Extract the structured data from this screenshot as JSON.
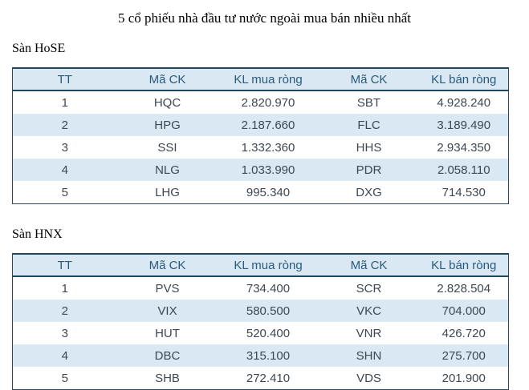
{
  "title": "5 cổ phiếu nhà đầu tư nước ngoài mua bán nhiều nhất",
  "colors": {
    "table_border": "#2b4a5c",
    "header_background": "#d9e8f2",
    "header_text": "#2a5a7c",
    "zebra_row_background": "#d9e8f2",
    "cell_text": "#3d4852",
    "page_background": "#ffffff"
  },
  "sections": [
    {
      "label": "Sàn HoSE",
      "table": {
        "headers": [
          "TT",
          "Mã CK",
          "KL mua ròng",
          "Mã CK",
          "KL bán ròng"
        ],
        "rows": [
          [
            "1",
            "HQC",
            "2.820.970",
            "SBT",
            "4.928.240"
          ],
          [
            "2",
            "HPG",
            "2.187.660",
            "FLC",
            "3.189.490"
          ],
          [
            "3",
            "SSI",
            "1.332.360",
            "HHS",
            "2.934.350"
          ],
          [
            "4",
            "NLG",
            "1.033.990",
            "PDR",
            "2.058.110"
          ],
          [
            "5",
            "LHG",
            "995.340",
            "DXG",
            "714.530"
          ]
        ]
      }
    },
    {
      "label": "Sàn HNX",
      "table": {
        "headers": [
          "TT",
          "Mã CK",
          "KL mua ròng",
          "Mã CK",
          "KL bán ròng"
        ],
        "rows": [
          [
            "1",
            "PVS",
            "734.400",
            "SCR",
            "2.828.504"
          ],
          [
            "2",
            "VIX",
            "580.500",
            "VKC",
            "704.000"
          ],
          [
            "3",
            "HUT",
            "520.400",
            "VNR",
            "426.720"
          ],
          [
            "4",
            "DBC",
            "315.100",
            "SHN",
            "275.700"
          ],
          [
            "5",
            "SHB",
            "272.410",
            "VDS",
            "201.900"
          ]
        ]
      }
    }
  ]
}
